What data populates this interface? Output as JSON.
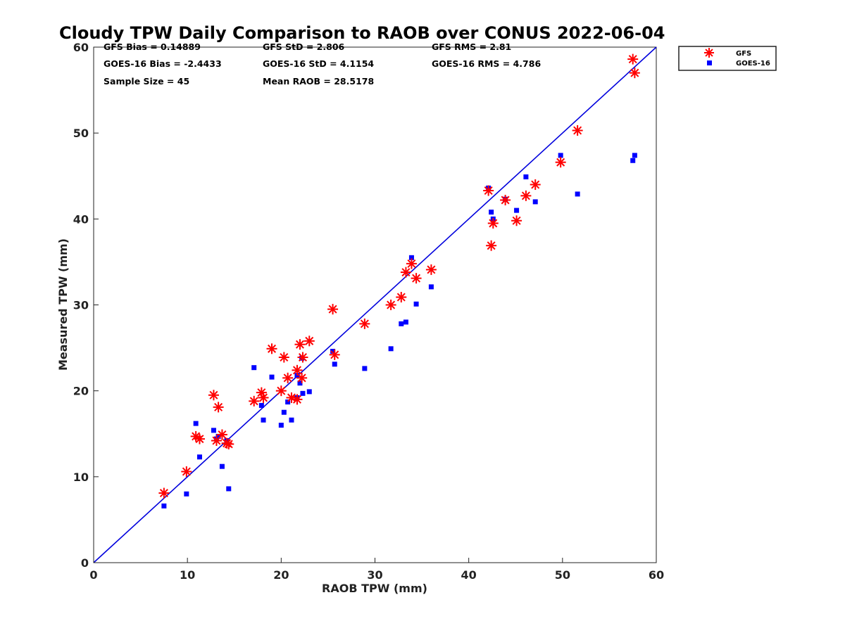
{
  "chart_data": {
    "type": "scatter",
    "title": "Cloudy TPW Daily Comparison to RAOB over CONUS 2022-06-04",
    "xlabel": "RAOB TPW (mm)",
    "ylabel": "Measured TPW (mm)",
    "xlim": [
      0,
      60
    ],
    "ylim": [
      0,
      60
    ],
    "x_ticks": [
      "0",
      "10",
      "20",
      "30",
      "40",
      "50",
      "60"
    ],
    "y_ticks": [
      "0",
      "10",
      "20",
      "30",
      "40",
      "50",
      "60"
    ],
    "grid": false,
    "legend_position": "top-right, outside plot",
    "reference_line": {
      "from": [
        0,
        0
      ],
      "to": [
        60,
        60
      ],
      "color": "#0000dd"
    },
    "stats": {
      "gfs_bias": "GFS Bias = 0.14889",
      "gfs_std": "GFS StD = 2.806",
      "gfs_rms": "GFS RMS = 2.81",
      "goes_bias": "GOES-16 Bias = -2.4433",
      "goes_std": "GOES-16 StD = 4.1154",
      "goes_rms": "GOES-16 RMS = 4.786",
      "sample_size": "Sample Size = 45",
      "mean_raob": "Mean RAOB = 28.5178"
    },
    "series": [
      {
        "name": "GFS",
        "marker": "asterisk",
        "color": "#ff0000",
        "points": [
          [
            7.5,
            8.1
          ],
          [
            9.9,
            10.6
          ],
          [
            10.9,
            14.7
          ],
          [
            11.3,
            14.4
          ],
          [
            12.8,
            19.5
          ],
          [
            13.1,
            14.2
          ],
          [
            13.3,
            18.1
          ],
          [
            13.7,
            14.9
          ],
          [
            14.2,
            13.9
          ],
          [
            14.4,
            13.8
          ],
          [
            17.1,
            18.8
          ],
          [
            17.9,
            19.8
          ],
          [
            18.1,
            19.2
          ],
          [
            19.0,
            24.9
          ],
          [
            20.0,
            20.0
          ],
          [
            20.3,
            23.9
          ],
          [
            20.7,
            21.5
          ],
          [
            21.1,
            19.2
          ],
          [
            21.7,
            22.4
          ],
          [
            21.7,
            19.0
          ],
          [
            22.0,
            25.4
          ],
          [
            22.2,
            21.5
          ],
          [
            22.3,
            23.9
          ],
          [
            23.0,
            25.8
          ],
          [
            25.5,
            29.5
          ],
          [
            25.7,
            24.2
          ],
          [
            28.9,
            27.8
          ],
          [
            31.7,
            30.0
          ],
          [
            32.8,
            30.9
          ],
          [
            33.3,
            33.8
          ],
          [
            33.9,
            34.8
          ],
          [
            34.4,
            33.1
          ],
          [
            36.0,
            34.1
          ],
          [
            42.1,
            43.3
          ],
          [
            42.4,
            36.9
          ],
          [
            42.6,
            39.5
          ],
          [
            43.9,
            42.2
          ],
          [
            45.1,
            39.8
          ],
          [
            46.1,
            42.7
          ],
          [
            47.1,
            44.0
          ],
          [
            49.8,
            46.6
          ],
          [
            51.6,
            50.3
          ],
          [
            57.5,
            58.6
          ],
          [
            57.7,
            57.0
          ]
        ]
      },
      {
        "name": "GOES-16",
        "marker": "square",
        "color": "#0000ff",
        "points": [
          [
            7.5,
            6.6
          ],
          [
            9.9,
            8.0
          ],
          [
            10.9,
            16.2
          ],
          [
            11.3,
            12.3
          ],
          [
            12.8,
            15.4
          ],
          [
            13.1,
            14.4
          ],
          [
            13.3,
            14.7
          ],
          [
            13.7,
            11.2
          ],
          [
            14.2,
            14.2
          ],
          [
            14.4,
            8.6
          ],
          [
            17.1,
            22.7
          ],
          [
            17.9,
            18.3
          ],
          [
            18.1,
            16.6
          ],
          [
            19.0,
            21.6
          ],
          [
            20.0,
            16.0
          ],
          [
            20.3,
            17.5
          ],
          [
            20.7,
            18.7
          ],
          [
            21.1,
            16.6
          ],
          [
            21.7,
            19.2
          ],
          [
            21.7,
            21.8
          ],
          [
            22.0,
            20.9
          ],
          [
            22.2,
            23.8
          ],
          [
            22.3,
            19.7
          ],
          [
            23.0,
            19.9
          ],
          [
            25.5,
            24.6
          ],
          [
            25.7,
            23.1
          ],
          [
            28.9,
            22.6
          ],
          [
            31.7,
            24.9
          ],
          [
            32.8,
            27.8
          ],
          [
            33.3,
            28.0
          ],
          [
            33.9,
            35.5
          ],
          [
            34.4,
            30.1
          ],
          [
            36.0,
            32.1
          ],
          [
            42.1,
            43.6
          ],
          [
            42.4,
            40.8
          ],
          [
            42.6,
            40.0
          ],
          [
            43.9,
            42.3
          ],
          [
            45.1,
            41.0
          ],
          [
            46.1,
            44.9
          ],
          [
            47.1,
            42.0
          ],
          [
            49.8,
            47.4
          ],
          [
            51.6,
            42.9
          ],
          [
            57.5,
            46.8
          ],
          [
            57.7,
            47.4
          ]
        ]
      }
    ]
  }
}
